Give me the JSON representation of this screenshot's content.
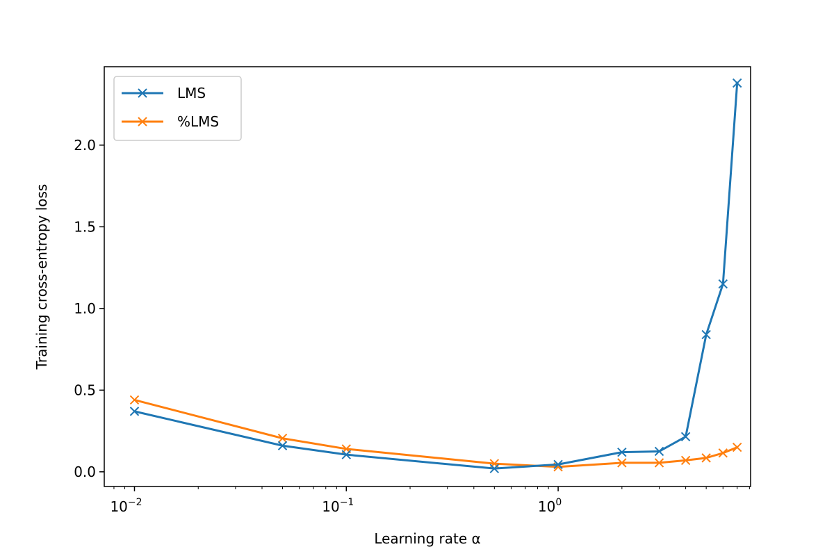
{
  "chart_data": {
    "type": "line",
    "xscale": "log",
    "xlabel": "Learning rate α",
    "ylabel": "Training cross-entropy loss",
    "xlim": [
      0.0072,
      8.1
    ],
    "ylim": [
      -0.09,
      2.48
    ],
    "yticks": [
      {
        "value": 0.0,
        "label": "0.0"
      },
      {
        "value": 0.5,
        "label": "0.5"
      },
      {
        "value": 1.0,
        "label": "1.0"
      },
      {
        "value": 1.5,
        "label": "1.5"
      },
      {
        "value": 2.0,
        "label": "2.0"
      }
    ],
    "xticks": [
      {
        "value": 0.01,
        "base": "10",
        "exp": "−2"
      },
      {
        "value": 0.1,
        "base": "10",
        "exp": "−1"
      },
      {
        "value": 1,
        "base": "10",
        "exp": "0"
      }
    ],
    "grid": false,
    "legend_position": "top-left",
    "series": [
      {
        "name": "LMS",
        "color": "#1f77b4",
        "marker": "x",
        "x": [
          0.01,
          0.05,
          0.1,
          0.5,
          1,
          2,
          3,
          4,
          5,
          6,
          7
        ],
        "y": [
          0.37,
          0.16,
          0.105,
          0.02,
          0.045,
          0.12,
          0.125,
          0.215,
          0.84,
          1.15,
          2.38
        ]
      },
      {
        "name": "%LMS",
        "color": "#ff7f0e",
        "marker": "x",
        "x": [
          0.01,
          0.05,
          0.1,
          0.5,
          1,
          2,
          3,
          4,
          5,
          6,
          7
        ],
        "y": [
          0.44,
          0.205,
          0.14,
          0.05,
          0.03,
          0.055,
          0.055,
          0.07,
          0.085,
          0.115,
          0.15
        ]
      }
    ]
  }
}
